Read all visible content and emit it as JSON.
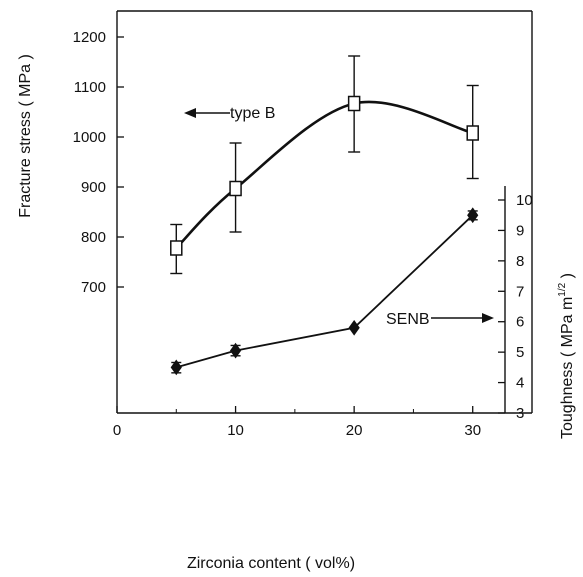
{
  "chart_data": {
    "type": "line",
    "xlabel": "Zirconia content ( vol%)",
    "ylabel_left": "Fracture stress ( MPa )",
    "ylabel_right": "Toughness ( MPa m",
    "ylabel_right_sup": "1/2",
    "ylabel_right_close": " )",
    "xlim": [
      0,
      35
    ],
    "ylim_left": [
      700,
      1200
    ],
    "ylim_right": [
      3,
      10
    ],
    "x_ticks": [
      0,
      10,
      20,
      30
    ],
    "y_left_ticks": [
      700,
      800,
      900,
      1000,
      1100,
      1200
    ],
    "y_right_ticks": [
      3,
      4,
      5,
      6,
      7,
      8,
      9,
      10
    ],
    "series": [
      {
        "name": "type B",
        "axis": "left",
        "marker": "open-square",
        "x": [
          5,
          10,
          20,
          30
        ],
        "y": [
          778,
          897,
          1067,
          1008
        ],
        "err_low": [
          727,
          810,
          970,
          917
        ],
        "err_high": [
          825,
          988,
          1162,
          1103
        ]
      },
      {
        "name": "SENB",
        "axis": "right",
        "marker": "filled-diamond",
        "x": [
          5,
          10,
          20,
          30
        ],
        "y": [
          4.5,
          5.05,
          5.8,
          9.5
        ],
        "err_low": [
          4.32,
          4.88,
          5.8,
          9.35
        ],
        "err_high": [
          4.66,
          5.22,
          5.8,
          9.64
        ]
      }
    ]
  }
}
